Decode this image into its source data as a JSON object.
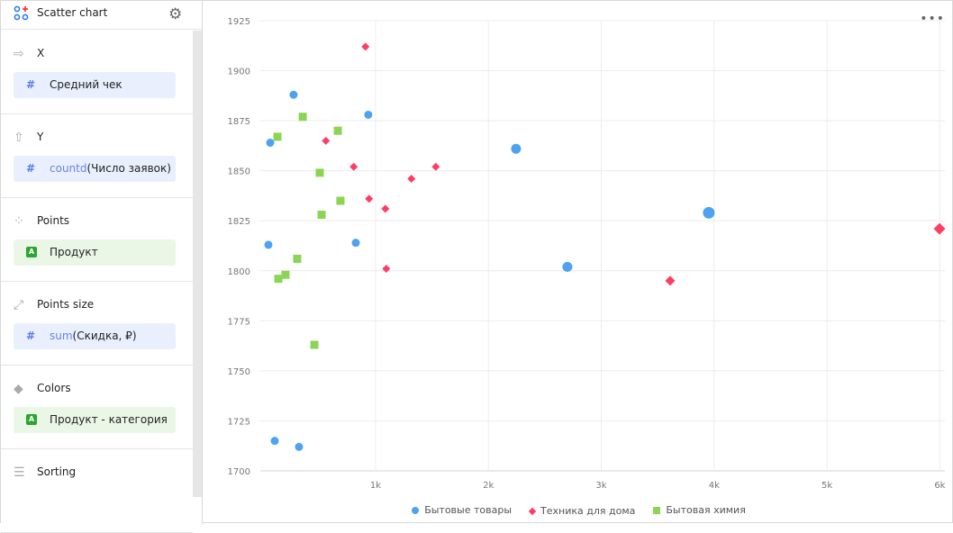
{
  "header": {
    "title": "Scatter chart",
    "settings_icon": "gear-icon",
    "logo_icon": "scatter-chart-icon"
  },
  "sections": [
    {
      "label": "X",
      "icon": "arrow-right-icon",
      "chip": {
        "type": "measure",
        "text": "Средний чек"
      }
    },
    {
      "label": "Y",
      "icon": "arrow-up-icon",
      "chip": {
        "type": "measure",
        "fn": "countd",
        "text": "(Число заявок)"
      }
    },
    {
      "label": "Points",
      "icon": "points-icon",
      "chip": {
        "type": "dimension",
        "text": "Продукт"
      }
    },
    {
      "label": "Points size",
      "icon": "resize-icon",
      "chip": {
        "type": "measure",
        "fn": "sum",
        "text": "(Скидка, ₽)"
      }
    },
    {
      "label": "Colors",
      "icon": "paint-bucket-icon",
      "chip": {
        "type": "dimension",
        "text": "Продукт - категория"
      }
    },
    {
      "label": "Sorting",
      "icon": "sort-icon"
    }
  ],
  "chip_icons": {
    "measure": "#",
    "dimension": "A"
  },
  "chart_data": {
    "type": "scatter",
    "xlim": [
      0,
      6000
    ],
    "ylim": [
      1700,
      1925
    ],
    "x_ticks": [
      "1k",
      "2k",
      "3k",
      "4k",
      "5k",
      "6k"
    ],
    "x_tick_values": [
      1000,
      2000,
      3000,
      4000,
      5000,
      6000
    ],
    "y_ticks": [
      "1700",
      "1725",
      "1750",
      "1775",
      "1800",
      "1825",
      "1850",
      "1875",
      "1900",
      "1925"
    ],
    "grid": true,
    "legend_position": "bottom",
    "series": [
      {
        "name": "Бытовые товары",
        "color": "#4da2f1",
        "marker": "circle",
        "points": [
          [
            67,
            1864,
            1
          ],
          [
            274,
            1888,
            1
          ],
          [
            936,
            1878,
            1
          ],
          [
            51,
            1813,
            1
          ],
          [
            825,
            1814,
            1
          ],
          [
            107,
            1715,
            1
          ],
          [
            322,
            1712,
            1
          ],
          [
            2245,
            1861,
            2
          ],
          [
            2700,
            1802,
            2
          ],
          [
            3953,
            1829,
            3
          ]
        ]
      },
      {
        "name": "Техника для дома",
        "color": "#ff3d64",
        "marker": "diamond",
        "points": [
          [
            911,
            1912,
            1
          ],
          [
            560,
            1865,
            1
          ],
          [
            807,
            1852,
            1
          ],
          [
            943,
            1836,
            1
          ],
          [
            1087,
            1831,
            1
          ],
          [
            1318,
            1846,
            1
          ],
          [
            1534,
            1852,
            1
          ],
          [
            1095,
            1801,
            1
          ],
          [
            3610,
            1795,
            2
          ],
          [
            5997,
            1821,
            3
          ]
        ]
      },
      {
        "name": "Бытовая химия",
        "color": "#8ad554",
        "marker": "square",
        "points": [
          [
            131,
            1867,
            1
          ],
          [
            355,
            1877,
            1
          ],
          [
            666,
            1870,
            1
          ],
          [
            506,
            1849,
            1
          ],
          [
            689,
            1835,
            1
          ],
          [
            522,
            1828,
            1
          ],
          [
            306,
            1806,
            1
          ],
          [
            202,
            1798,
            1
          ],
          [
            139,
            1796,
            1
          ],
          [
            458,
            1763,
            1
          ]
        ]
      }
    ]
  }
}
